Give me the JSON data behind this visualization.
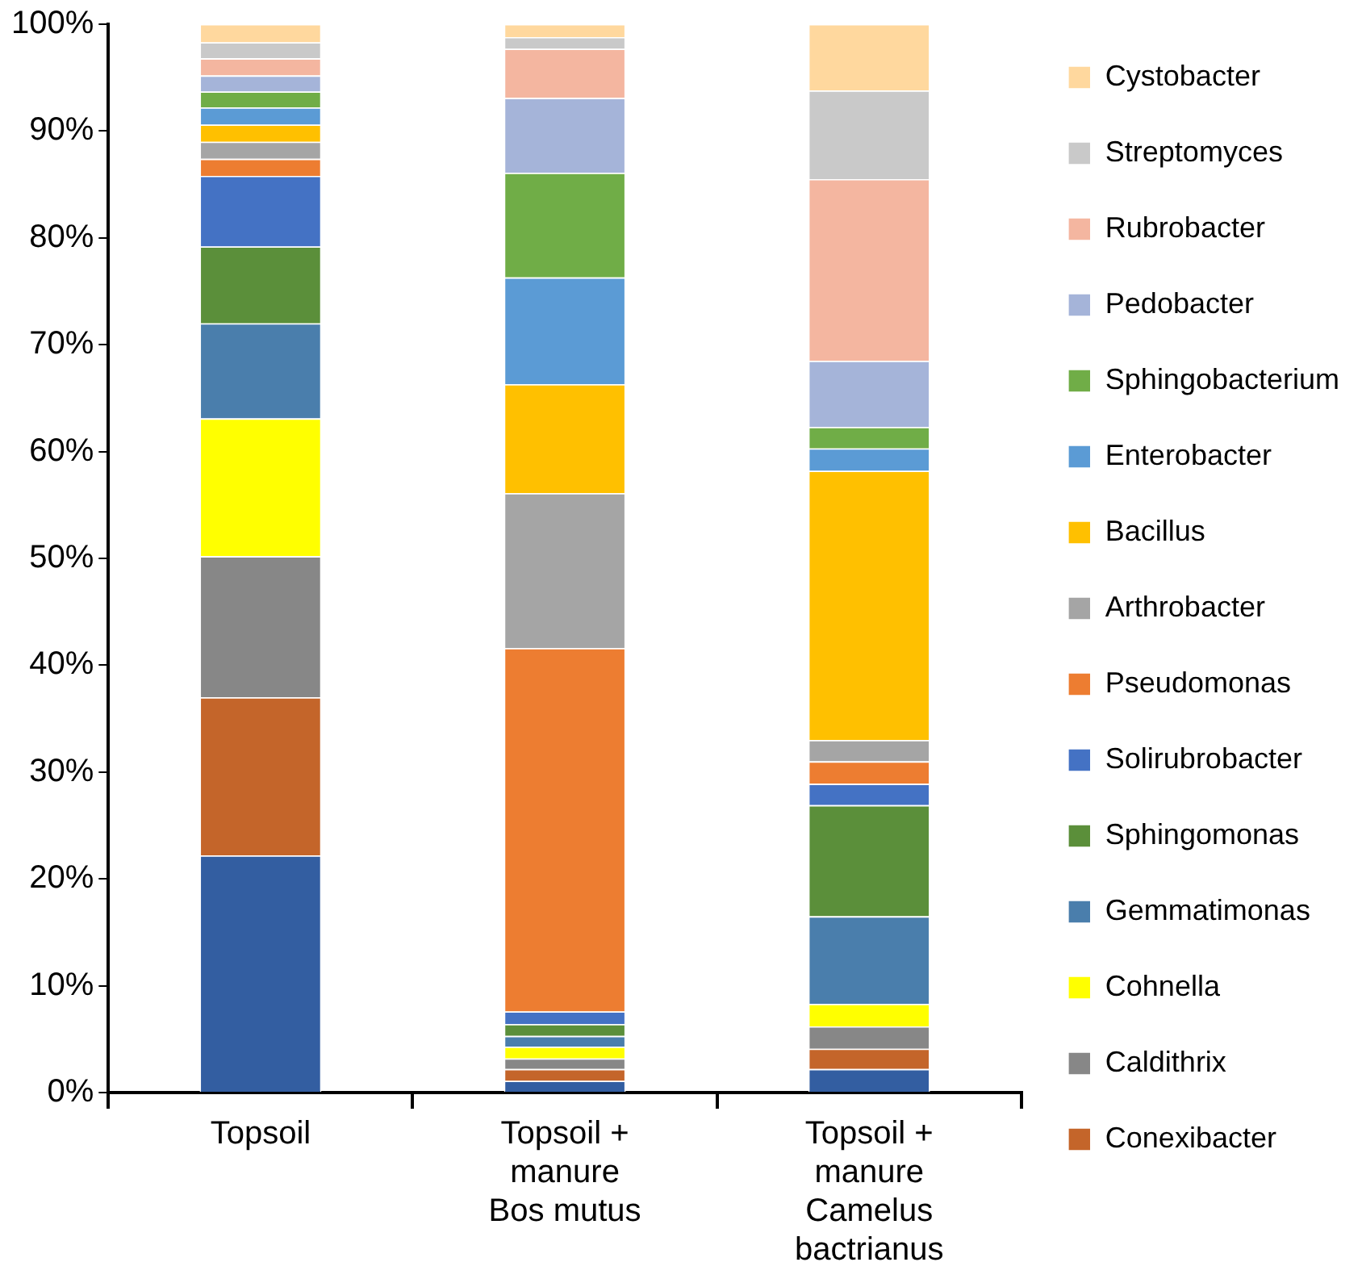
{
  "chart_data": {
    "type": "bar",
    "stacked": true,
    "categories": [
      "Topsoil",
      "Topsoil +\nmanure\nBos mutus",
      "Topsoil +\nmanure\nCamelus\nbactrianus"
    ],
    "ylim": [
      0,
      100
    ],
    "yticks": [
      {
        "value": 0,
        "label": "0%"
      },
      {
        "value": 10,
        "label": "10%"
      },
      {
        "value": 20,
        "label": "20%"
      },
      {
        "value": 30,
        "label": "30%"
      },
      {
        "value": 40,
        "label": "40%"
      },
      {
        "value": 50,
        "label": "50%"
      },
      {
        "value": 60,
        "label": "60%"
      },
      {
        "value": 70,
        "label": "70%"
      },
      {
        "value": 80,
        "label": "80%"
      },
      {
        "value": 90,
        "label": "90%"
      },
      {
        "value": 100,
        "label": "100%"
      }
    ],
    "grid": false,
    "legend": "right",
    "series": [
      {
        "color": "#335ea1",
        "values": [
          22.2,
          1.1,
          2.2
        ]
      },
      {
        "name": "Conexibacter",
        "color": "#c4652a",
        "values": [
          14.8,
          1.1,
          1.9
        ]
      },
      {
        "name": "Caldithrix",
        "color": "#878787",
        "values": [
          13.2,
          1.0,
          2.1
        ]
      },
      {
        "name": "Cohnella",
        "color": "#ffff00",
        "values": [
          12.9,
          1.1,
          2.1
        ]
      },
      {
        "name": "Gemmatimonas",
        "color": "#4a7eac",
        "values": [
          8.9,
          1.0,
          8.2
        ]
      },
      {
        "name": "Sphingomonas",
        "color": "#5b8f3a",
        "values": [
          7.2,
          1.1,
          10.4
        ]
      },
      {
        "name": "Solirubrobacter",
        "color": "#4472c4",
        "values": [
          6.6,
          1.2,
          2.0
        ]
      },
      {
        "name": "Pseudomonas",
        "color": "#ed7d31",
        "values": [
          1.6,
          34.0,
          2.1
        ]
      },
      {
        "name": "Arthrobacter",
        "color": "#a5a5a5",
        "values": [
          1.6,
          14.5,
          2.0
        ]
      },
      {
        "name": "Bacillus",
        "color": "#ffc000",
        "values": [
          1.6,
          10.2,
          25.2
        ]
      },
      {
        "name": "Enterobacter",
        "color": "#5b9bd5",
        "values": [
          1.6,
          10.0,
          2.1
        ]
      },
      {
        "name": "Sphingobacterium",
        "color": "#70ad47",
        "values": [
          1.5,
          9.8,
          2.0
        ]
      },
      {
        "name": "Pedobacter",
        "color": "#a5b4d9",
        "values": [
          1.5,
          7.0,
          6.2
        ]
      },
      {
        "name": "Rubrobacter",
        "color": "#f4b6a0",
        "values": [
          1.6,
          4.6,
          17.0
        ]
      },
      {
        "name": "Streptomyces",
        "color": "#c9c9c9",
        "values": [
          1.5,
          1.1,
          8.3
        ]
      },
      {
        "name": "Cystobacter",
        "color": "#ffd89e",
        "values": [
          1.7,
          1.2,
          6.2
        ]
      }
    ]
  }
}
